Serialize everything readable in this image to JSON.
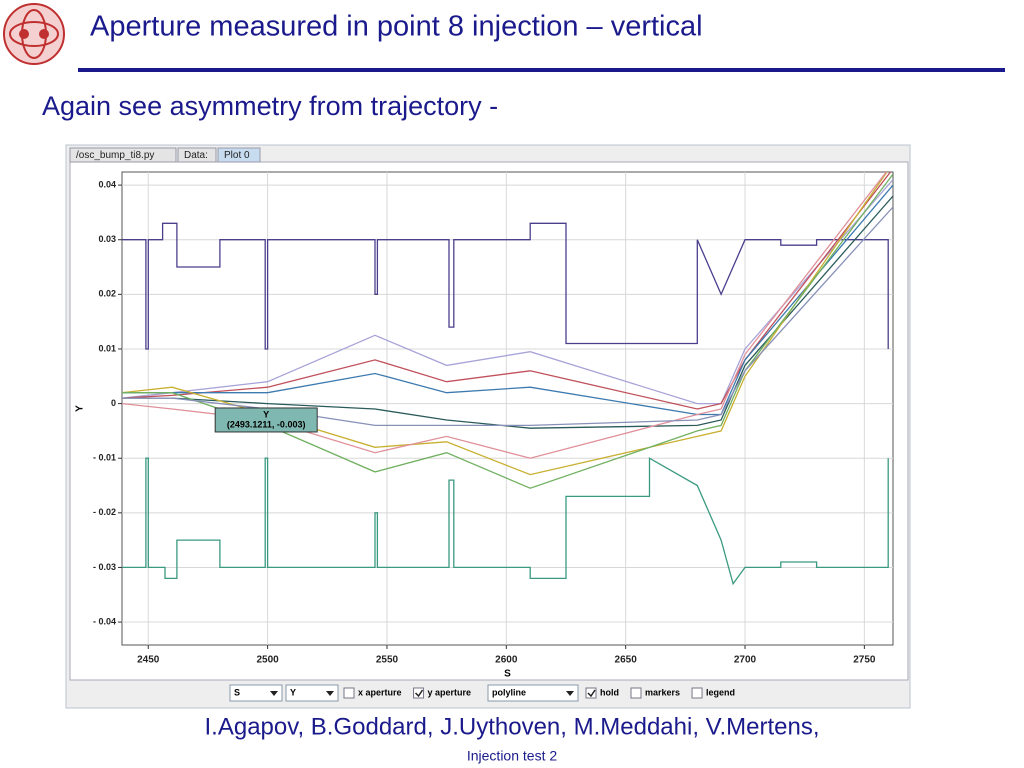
{
  "header": {
    "title": "Aperture measured in point 8 injection – vertical",
    "subtitle": "Again see asymmetry from trajectory -"
  },
  "window": {
    "tabs": [
      "/osc_bump_ti8.py",
      "Data:",
      "Plot 0"
    ],
    "active_tab": 2,
    "toolbar": {
      "x_select": "S",
      "y_select": "Y",
      "mode": "polyline",
      "checkboxes": [
        {
          "label": "x aperture",
          "checked": false
        },
        {
          "label": "y aperture",
          "checked": true
        },
        {
          "label": "hold",
          "checked": true
        },
        {
          "label": "markers",
          "checked": false
        },
        {
          "label": "legend",
          "checked": false
        }
      ]
    }
  },
  "chart_data": {
    "type": "line",
    "xlabel": "S",
    "ylabel": "Y",
    "xlim": [
      2439,
      2762
    ],
    "ylim": [
      -0.0442,
      0.0424
    ],
    "xticks": [
      2450,
      2500,
      2550,
      2600,
      2650,
      2700,
      2750
    ],
    "yticks": [
      0.04,
      0.03,
      0.02,
      0.01,
      0,
      {
        "value": -0.01,
        "label": "- 0.01"
      },
      {
        "value": -0.02,
        "label": "- 0.02"
      },
      {
        "value": -0.03,
        "label": "- 0.03"
      },
      {
        "value": -0.04,
        "label": "- 0.04"
      }
    ],
    "grid": true,
    "tooltip": {
      "title": "Y",
      "text": "(2493.1211, -0.003)",
      "x": 2493.1211,
      "y": -0.003
    },
    "series": [
      {
        "color": "#4b3f8c",
        "x": [
          2439,
          2449,
          2449,
          2450,
          2450,
          2456,
          2456,
          2462,
          2462,
          2480,
          2480,
          2499,
          2499,
          2500,
          2500,
          2545,
          2545,
          2546,
          2546,
          2576,
          2576,
          2578,
          2578,
          2610,
          2610,
          2625,
          2625,
          2680,
          2680,
          2690,
          2700,
          2715,
          2715,
          2730,
          2730,
          2760,
          2760
        ],
        "values": [
          0.03,
          0.03,
          0.01,
          0.01,
          0.03,
          0.03,
          0.033,
          0.033,
          0.025,
          0.025,
          0.03,
          0.03,
          0.01,
          0.01,
          0.03,
          0.03,
          0.02,
          0.02,
          0.03,
          0.03,
          0.014,
          0.014,
          0.03,
          0.03,
          0.033,
          0.033,
          0.011,
          0.011,
          0.03,
          0.02,
          0.03,
          0.03,
          0.029,
          0.029,
          0.03,
          0.03,
          0.01
        ]
      },
      {
        "color": "#3a9a80",
        "x": [
          2439,
          2449,
          2449,
          2450,
          2450,
          2457,
          2457,
          2462,
          2462,
          2480,
          2480,
          2499,
          2499,
          2500,
          2500,
          2545,
          2545,
          2546,
          2546,
          2576,
          2576,
          2578,
          2578,
          2610,
          2610,
          2625,
          2625,
          2660,
          2660,
          2680,
          2690,
          2695,
          2700,
          2715,
          2715,
          2730,
          2730,
          2760,
          2760
        ],
        "values": [
          -0.03,
          -0.03,
          -0.01,
          -0.01,
          -0.03,
          -0.03,
          -0.032,
          -0.032,
          -0.025,
          -0.025,
          -0.03,
          -0.03,
          -0.01,
          -0.01,
          -0.03,
          -0.03,
          -0.02,
          -0.02,
          -0.03,
          -0.03,
          -0.014,
          -0.014,
          -0.03,
          -0.03,
          -0.032,
          -0.032,
          -0.017,
          -0.017,
          -0.01,
          -0.015,
          -0.025,
          -0.033,
          -0.03,
          -0.03,
          -0.029,
          -0.029,
          -0.03,
          -0.03,
          -0.01
        ]
      },
      {
        "color": "#a8a4d8",
        "x": [
          2439,
          2460,
          2500,
          2545,
          2575,
          2610,
          2680,
          2690,
          2700,
          2762
        ],
        "values": [
          0.001,
          0.002,
          0.004,
          0.0125,
          0.007,
          0.0095,
          0.0,
          0.0,
          0.01,
          0.041
        ]
      },
      {
        "color": "#c0505a",
        "x": [
          2439,
          2460,
          2500,
          2545,
          2575,
          2610,
          2680,
          2690,
          2700,
          2762
        ],
        "values": [
          0.001,
          0.0015,
          0.003,
          0.008,
          0.004,
          0.006,
          -0.001,
          0.0,
          0.008,
          0.043
        ]
      },
      {
        "color": "#3c7ab0",
        "x": [
          2439,
          2460,
          2500,
          2545,
          2575,
          2610,
          2680,
          2690,
          2700,
          2762
        ],
        "values": [
          0.002,
          0.002,
          0.002,
          0.0055,
          0.002,
          0.003,
          -0.002,
          -0.002,
          0.008,
          0.04
        ]
      },
      {
        "color": "#2a5a5a",
        "x": [
          2439,
          2460,
          2500,
          2545,
          2575,
          2610,
          2680,
          2690,
          2700,
          2762
        ],
        "values": [
          0.001,
          0.001,
          0.0,
          -0.001,
          -0.003,
          -0.0045,
          -0.004,
          -0.003,
          0.007,
          0.038
        ]
      },
      {
        "color": "#c8b030",
        "x": [
          2439,
          2460,
          2500,
          2545,
          2575,
          2610,
          2680,
          2690,
          2700,
          2762
        ],
        "values": [
          0.002,
          0.003,
          -0.002,
          -0.008,
          -0.007,
          -0.013,
          -0.006,
          -0.005,
          0.005,
          0.044
        ]
      },
      {
        "color": "#e0909a",
        "x": [
          2439,
          2460,
          2500,
          2545,
          2575,
          2610,
          2680,
          2690,
          2700,
          2762
        ],
        "values": [
          0.0,
          -0.001,
          -0.003,
          -0.009,
          -0.006,
          -0.01,
          -0.002,
          -0.001,
          0.009,
          0.044
        ]
      },
      {
        "color": "#70b060",
        "x": [
          2439,
          2460,
          2500,
          2545,
          2575,
          2610,
          2680,
          2690,
          2700,
          2762
        ],
        "values": [
          0.002,
          0.002,
          -0.004,
          -0.0125,
          -0.009,
          -0.0155,
          -0.005,
          -0.004,
          0.006,
          0.042
        ]
      },
      {
        "color": "#8890b8",
        "x": [
          2439,
          2460,
          2500,
          2545,
          2575,
          2610,
          2680,
          2690,
          2700,
          2762
        ],
        "values": [
          0.001,
          0.001,
          -0.001,
          -0.004,
          -0.004,
          -0.004,
          -0.003,
          -0.002,
          0.006,
          0.036
        ]
      }
    ]
  },
  "footer": {
    "authors": "I.Agapov, B.Goddard, J.Uythoven, M.Meddahi, V.Mertens,",
    "page": "Injection test 2"
  }
}
